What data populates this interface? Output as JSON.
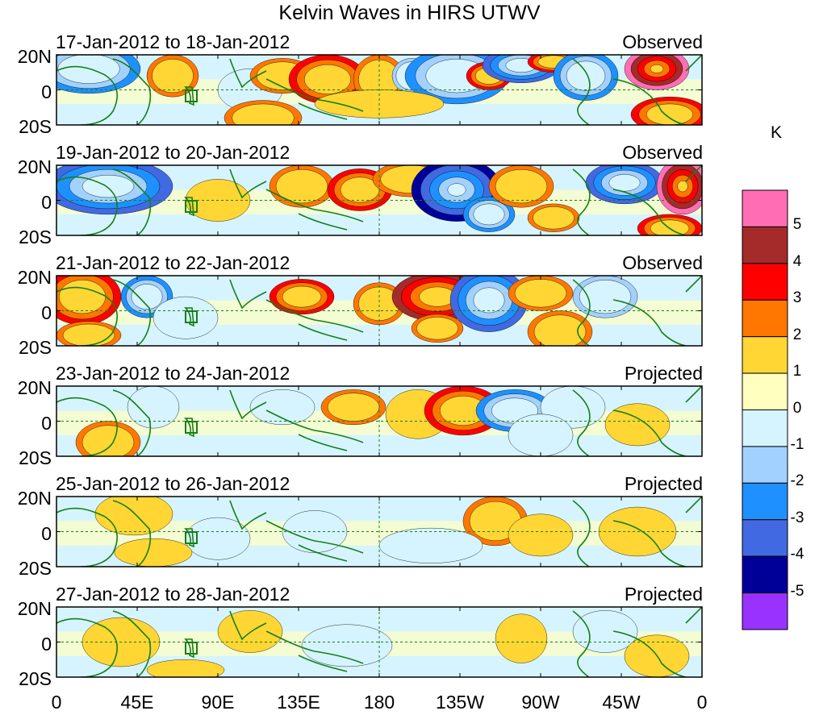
{
  "title": "Kelvin Waves in HIRS UTWV",
  "lat_labels": [
    "20N",
    "0",
    "20S"
  ],
  "lon_labels": [
    "0",
    "45E",
    "90E",
    "135E",
    "180",
    "135W",
    "90W",
    "45W",
    "0"
  ],
  "panels": [
    {
      "date": "17-Jan-2012 to 18-Jan-2012",
      "kind": "Observed"
    },
    {
      "date": "19-Jan-2012 to 20-Jan-2012",
      "kind": "Observed"
    },
    {
      "date": "21-Jan-2012 to 22-Jan-2012",
      "kind": "Observed"
    },
    {
      "date": "23-Jan-2012 to 24-Jan-2012",
      "kind": "Projected"
    },
    {
      "date": "25-Jan-2012 to 26-Jan-2012",
      "kind": "Projected"
    },
    {
      "date": "27-Jan-2012 to 28-Jan-2012",
      "kind": "Projected"
    }
  ],
  "colorbar": {
    "unit": "K",
    "labels": [
      "5",
      "4",
      "3",
      "2",
      "1",
      "0",
      "-1",
      "-2",
      "-3",
      "-4",
      "-5"
    ],
    "colors": [
      "#ff6eb4",
      "#a52a2a",
      "#ff0000",
      "#ff7700",
      "#ffd633",
      "#ffffc0",
      "#d6f4ff",
      "#a3d1ff",
      "#1e90ff",
      "#4169e1",
      "#000099",
      "#9932ff"
    ]
  },
  "palette": {
    "land_outline": "#158015",
    "neutral": "#ffffc0"
  }
}
